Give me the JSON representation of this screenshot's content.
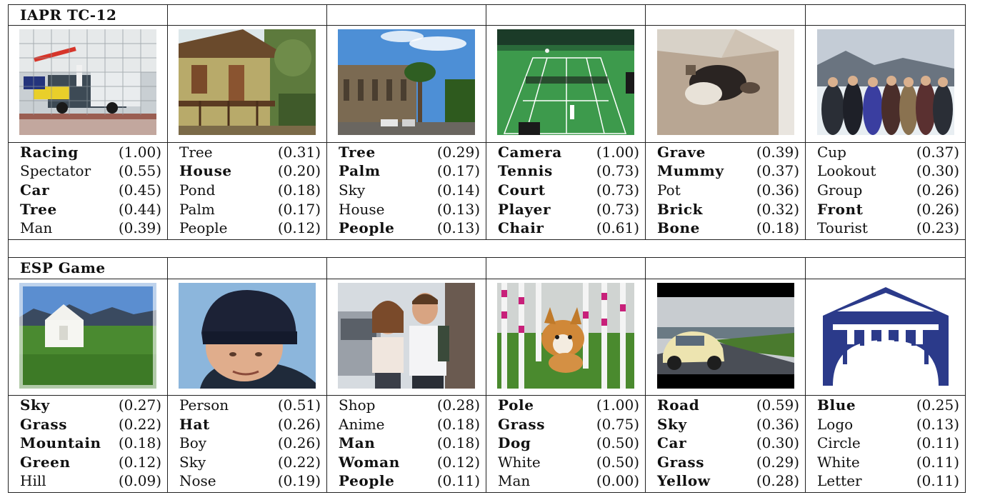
{
  "datasets": [
    {
      "name": "IAPR TC-12",
      "images": [
        {
          "icon": "race-car-photo",
          "tags": [
            {
              "word": "Racing",
              "score": "(1.00)",
              "bold": true
            },
            {
              "word": "Spectator",
              "score": "(0.55)",
              "bold": false
            },
            {
              "word": "Car",
              "score": "(0.45)",
              "bold": true
            },
            {
              "word": "Tree",
              "score": "(0.44)",
              "bold": true
            },
            {
              "word": "Man",
              "score": "(0.39)",
              "bold": false
            }
          ]
        },
        {
          "icon": "house-photo",
          "tags": [
            {
              "word": "Tree",
              "score": "(0.31)",
              "bold": false
            },
            {
              "word": "House",
              "score": "(0.20)",
              "bold": true
            },
            {
              "word": "Pond",
              "score": "(0.18)",
              "bold": false
            },
            {
              "word": "Palm",
              "score": "(0.17)",
              "bold": false
            },
            {
              "word": "People",
              "score": "(0.12)",
              "bold": false
            }
          ]
        },
        {
          "icon": "palm-street-photo",
          "tags": [
            {
              "word": "Tree",
              "score": "(0.29)",
              "bold": true
            },
            {
              "word": "Palm",
              "score": "(0.17)",
              "bold": true
            },
            {
              "word": "Sky",
              "score": "(0.14)",
              "bold": false
            },
            {
              "word": "House",
              "score": "(0.13)",
              "bold": false
            },
            {
              "word": "People",
              "score": "(0.13)",
              "bold": true
            }
          ]
        },
        {
          "icon": "tennis-court-photo",
          "tags": [
            {
              "word": "Camera",
              "score": "(1.00)",
              "bold": true
            },
            {
              "word": "Tennis",
              "score": "(0.73)",
              "bold": true
            },
            {
              "word": "Court",
              "score": "(0.73)",
              "bold": true
            },
            {
              "word": "Player",
              "score": "(0.73)",
              "bold": true
            },
            {
              "word": "Chair",
              "score": "(0.61)",
              "bold": true
            }
          ]
        },
        {
          "icon": "grave-photo",
          "tags": [
            {
              "word": "Grave",
              "score": "(0.39)",
              "bold": true
            },
            {
              "word": "Mummy",
              "score": "(0.37)",
              "bold": true
            },
            {
              "word": "Pot",
              "score": "(0.36)",
              "bold": false
            },
            {
              "word": "Brick",
              "score": "(0.32)",
              "bold": true
            },
            {
              "word": "Bone",
              "score": "(0.18)",
              "bold": true
            }
          ]
        },
        {
          "icon": "tourist-group-photo",
          "tags": [
            {
              "word": "Cup",
              "score": "(0.37)",
              "bold": false
            },
            {
              "word": "Lookout",
              "score": "(0.30)",
              "bold": false
            },
            {
              "word": "Group",
              "score": "(0.26)",
              "bold": false
            },
            {
              "word": "Front",
              "score": "(0.26)",
              "bold": true
            },
            {
              "word": "Tourist",
              "score": "(0.23)",
              "bold": false
            }
          ]
        }
      ]
    },
    {
      "name": "ESP Game",
      "images": [
        {
          "icon": "yurt-photo",
          "tags": [
            {
              "word": "Sky",
              "score": "(0.27)",
              "bold": true
            },
            {
              "word": "Grass",
              "score": "(0.22)",
              "bold": true
            },
            {
              "word": "Mountain",
              "score": "(0.18)",
              "bold": true
            },
            {
              "word": "Green",
              "score": "(0.12)",
              "bold": true
            },
            {
              "word": "Hill",
              "score": "(0.09)",
              "bold": false
            }
          ]
        },
        {
          "icon": "man-hat-photo",
          "tags": [
            {
              "word": "Person",
              "score": "(0.51)",
              "bold": false
            },
            {
              "word": "Hat",
              "score": "(0.26)",
              "bold": true
            },
            {
              "word": "Boy",
              "score": "(0.26)",
              "bold": false
            },
            {
              "word": "Sky",
              "score": "(0.22)",
              "bold": false
            },
            {
              "word": "Nose",
              "score": "(0.19)",
              "bold": false
            }
          ]
        },
        {
          "icon": "anime-couple-photo",
          "tags": [
            {
              "word": "Shop",
              "score": "(0.28)",
              "bold": false
            },
            {
              "word": "Anime",
              "score": "(0.18)",
              "bold": false
            },
            {
              "word": "Man",
              "score": "(0.18)",
              "bold": true
            },
            {
              "word": "Woman",
              "score": "(0.12)",
              "bold": true
            },
            {
              "word": "People",
              "score": "(0.11)",
              "bold": true
            }
          ]
        },
        {
          "icon": "dog-poles-photo",
          "tags": [
            {
              "word": "Pole",
              "score": "(1.00)",
              "bold": true
            },
            {
              "word": "Grass",
              "score": "(0.75)",
              "bold": true
            },
            {
              "word": "Dog",
              "score": "(0.50)",
              "bold": true
            },
            {
              "word": "White",
              "score": "(0.50)",
              "bold": false
            },
            {
              "word": "Man",
              "score": "(0.00)",
              "bold": false
            }
          ]
        },
        {
          "icon": "yellow-car-photo",
          "tags": [
            {
              "word": "Road",
              "score": "(0.59)",
              "bold": true
            },
            {
              "word": "Sky",
              "score": "(0.36)",
              "bold": true
            },
            {
              "word": "Car",
              "score": "(0.30)",
              "bold": true
            },
            {
              "word": "Grass",
              "score": "(0.29)",
              "bold": true
            },
            {
              "word": "Yellow",
              "score": "(0.28)",
              "bold": true
            }
          ]
        },
        {
          "icon": "blue-logo-image",
          "tags": [
            {
              "word": "Blue",
              "score": "(0.25)",
              "bold": true
            },
            {
              "word": "Logo",
              "score": "(0.13)",
              "bold": false
            },
            {
              "word": "Circle",
              "score": "(0.11)",
              "bold": false
            },
            {
              "word": "White",
              "score": "(0.11)",
              "bold": false
            },
            {
              "word": "Letter",
              "score": "(0.11)",
              "bold": false
            }
          ]
        }
      ]
    }
  ]
}
